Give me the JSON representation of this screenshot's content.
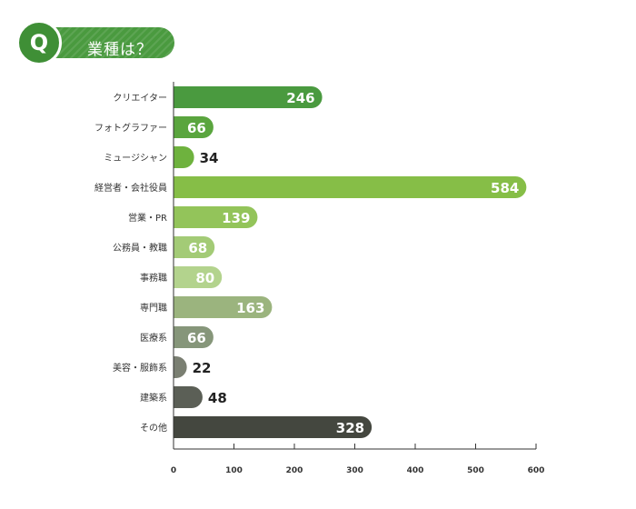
{
  "header": {
    "badge": "Q",
    "question": "業種は？"
  },
  "chart_data": {
    "type": "bar",
    "orientation": "horizontal",
    "title": "",
    "xlabel": "",
    "ylabel": "",
    "xlim": [
      0,
      600
    ],
    "xticks": [
      0,
      100,
      200,
      300,
      400,
      500,
      600
    ],
    "grid": false,
    "legend": "none",
    "categories": [
      "クリエイター",
      "フォトグラファー",
      "ミュージシャン",
      "経営者・会社役員",
      "営業・PR",
      "公務員・教職",
      "事務職",
      "専門職",
      "医療系",
      "美容・服飾系",
      "建築系",
      "その他"
    ],
    "values": [
      246,
      66,
      34,
      584,
      139,
      68,
      80,
      163,
      66,
      22,
      48,
      328
    ],
    "colors": [
      "#4a9a3f",
      "#5aa53e",
      "#6eb23e",
      "#86be47",
      "#93c45a",
      "#a3cb76",
      "#b3d38d",
      "#9bb47e",
      "#86967a",
      "#7a7f72",
      "#5b5f56",
      "#44473f"
    ],
    "label_colors": [
      "#ffffff",
      "#ffffff",
      "#ffffff",
      "#ffffff",
      "#ffffff",
      "#ffffff",
      "#ffffff",
      "#ffffff",
      "#ffffff",
      "#222222",
      "#ffffff",
      "#ffffff"
    ]
  }
}
